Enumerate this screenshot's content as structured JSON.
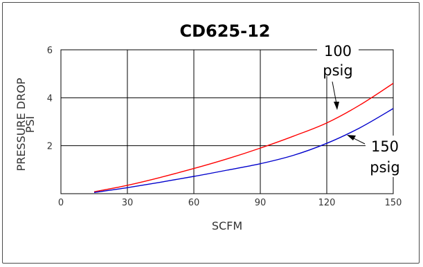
{
  "chart_data": {
    "type": "line",
    "title": "CD625-12",
    "xlabel": "SCFM",
    "ylabel": [
      "PRESSURE DROP",
      "PSI"
    ],
    "xlim": [
      0,
      150
    ],
    "ylim": [
      0,
      6
    ],
    "x_ticks": [
      0,
      30,
      60,
      90,
      120,
      150
    ],
    "y_ticks": [
      2,
      4,
      6
    ],
    "grid": true,
    "series": [
      {
        "name": "100 psig",
        "color": "#ff0000",
        "x": [
          15,
          30,
          45,
          60,
          75,
          90,
          105,
          120,
          135,
          150
        ],
        "y": [
          0.08,
          0.35,
          0.68,
          1.05,
          1.45,
          1.9,
          2.4,
          2.95,
          3.7,
          4.6
        ]
      },
      {
        "name": "150 psig",
        "color": "#0000cc",
        "x": [
          15,
          30,
          45,
          60,
          75,
          90,
          105,
          120,
          135,
          150
        ],
        "y": [
          0.05,
          0.25,
          0.48,
          0.72,
          0.98,
          1.25,
          1.6,
          2.1,
          2.75,
          3.55
        ]
      }
    ],
    "annotations": [
      {
        "lines": [
          "100",
          "psig"
        ],
        "series": "100 psig"
      },
      {
        "lines": [
          "150",
          "psig"
        ],
        "series": "150 psig"
      }
    ]
  }
}
